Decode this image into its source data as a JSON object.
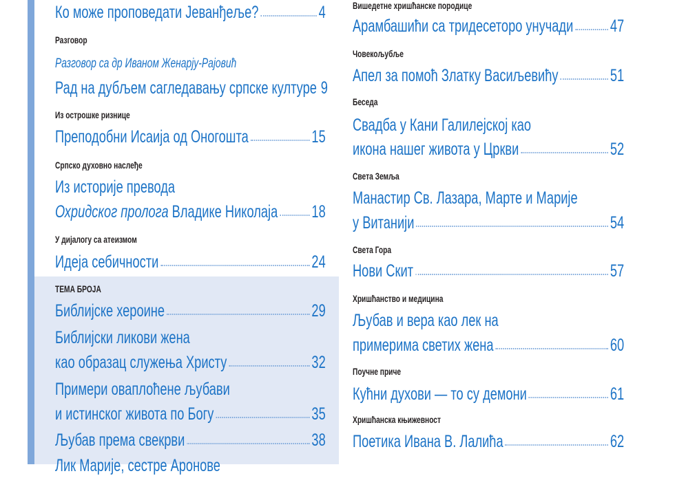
{
  "colors": {
    "accent": "#1c73c6",
    "bar": "#7fa7da",
    "panel": "#e1e8f5",
    "section_text": "#231f20"
  },
  "left_column": [
    {
      "type": "title",
      "lines": [
        "Ко може проповедати Јеванђеље?"
      ],
      "page": "4"
    },
    {
      "type": "section",
      "text": "Разговор"
    },
    {
      "type": "subtitle",
      "text": "Разговор са др Иваном Женарју-Рајовић"
    },
    {
      "type": "title",
      "lines": [
        "Рад на дубљем сагледавању српске културе"
      ],
      "page": "9"
    },
    {
      "type": "section",
      "text": "Из острошке ризнице"
    },
    {
      "type": "title",
      "lines": [
        "Преподобни Исаија од Оногошта"
      ],
      "page": "15"
    },
    {
      "type": "section",
      "text": "Српско духовно наслеђе"
    },
    {
      "type": "title",
      "lines": [
        "Из историје превода",
        {
          "italic": "Охридског пролога",
          "text": " Владике Николаја"
        }
      ],
      "page": "18"
    },
    {
      "type": "section",
      "text": "У дијалогу са атеизмом"
    },
    {
      "type": "title",
      "lines": [
        "Идеја себичности"
      ],
      "page": "24"
    },
    {
      "type": "section",
      "text": "ТЕМА БРОЈА"
    },
    {
      "type": "title",
      "lines": [
        "Библијске хероине"
      ],
      "page": "29"
    },
    {
      "type": "title",
      "lines": [
        "Библијски ликови жена",
        "као образац служења Христу"
      ],
      "page": "32"
    },
    {
      "type": "title",
      "lines": [
        "Примери оваплоћене љубави",
        "и истинског живота по Богу"
      ],
      "page": "35"
    },
    {
      "type": "title",
      "lines": [
        "Љубав према свекрви"
      ],
      "page": "38"
    },
    {
      "type": "title",
      "lines": [
        "Лик Марије, сестре Аронове"
      ]
    }
  ],
  "right_column": [
    {
      "type": "section",
      "text": "Вишедетне хришћанске породице"
    },
    {
      "type": "title",
      "lines": [
        "Арамбашићи са тридесеторо унучади"
      ],
      "page": "47"
    },
    {
      "type": "section",
      "text": "Човекољубље"
    },
    {
      "type": "title",
      "lines": [
        "Апел за помоћ Златку Васиљевићу"
      ],
      "page": "51"
    },
    {
      "type": "section",
      "text": "Беседа"
    },
    {
      "type": "title",
      "lines": [
        "Свадба у Кани Галилејској као",
        "икона нашег живота у Цркви"
      ],
      "page": "52"
    },
    {
      "type": "section",
      "text": "Света Земља"
    },
    {
      "type": "title",
      "lines": [
        "Манастир Св. Лазара, Марте и Марије",
        "у Витанији"
      ],
      "page": "54"
    },
    {
      "type": "section",
      "text": "Света Гора"
    },
    {
      "type": "title",
      "lines": [
        "Нови Скит"
      ],
      "page": "57"
    },
    {
      "type": "section",
      "text": "Хришћанство и медицина"
    },
    {
      "type": "title",
      "lines": [
        "Љубав и вера као лек на",
        "примерима светих жена"
      ],
      "page": "60"
    },
    {
      "type": "section",
      "text": "Поучне приче"
    },
    {
      "type": "title",
      "lines": [
        "Кућни духови — то су демони"
      ],
      "page": "61"
    },
    {
      "type": "section",
      "text": "Хришћанска књижевност"
    },
    {
      "type": "title",
      "lines": [
        "Поетика Ивана В. Лалића"
      ],
      "page": "62"
    }
  ]
}
